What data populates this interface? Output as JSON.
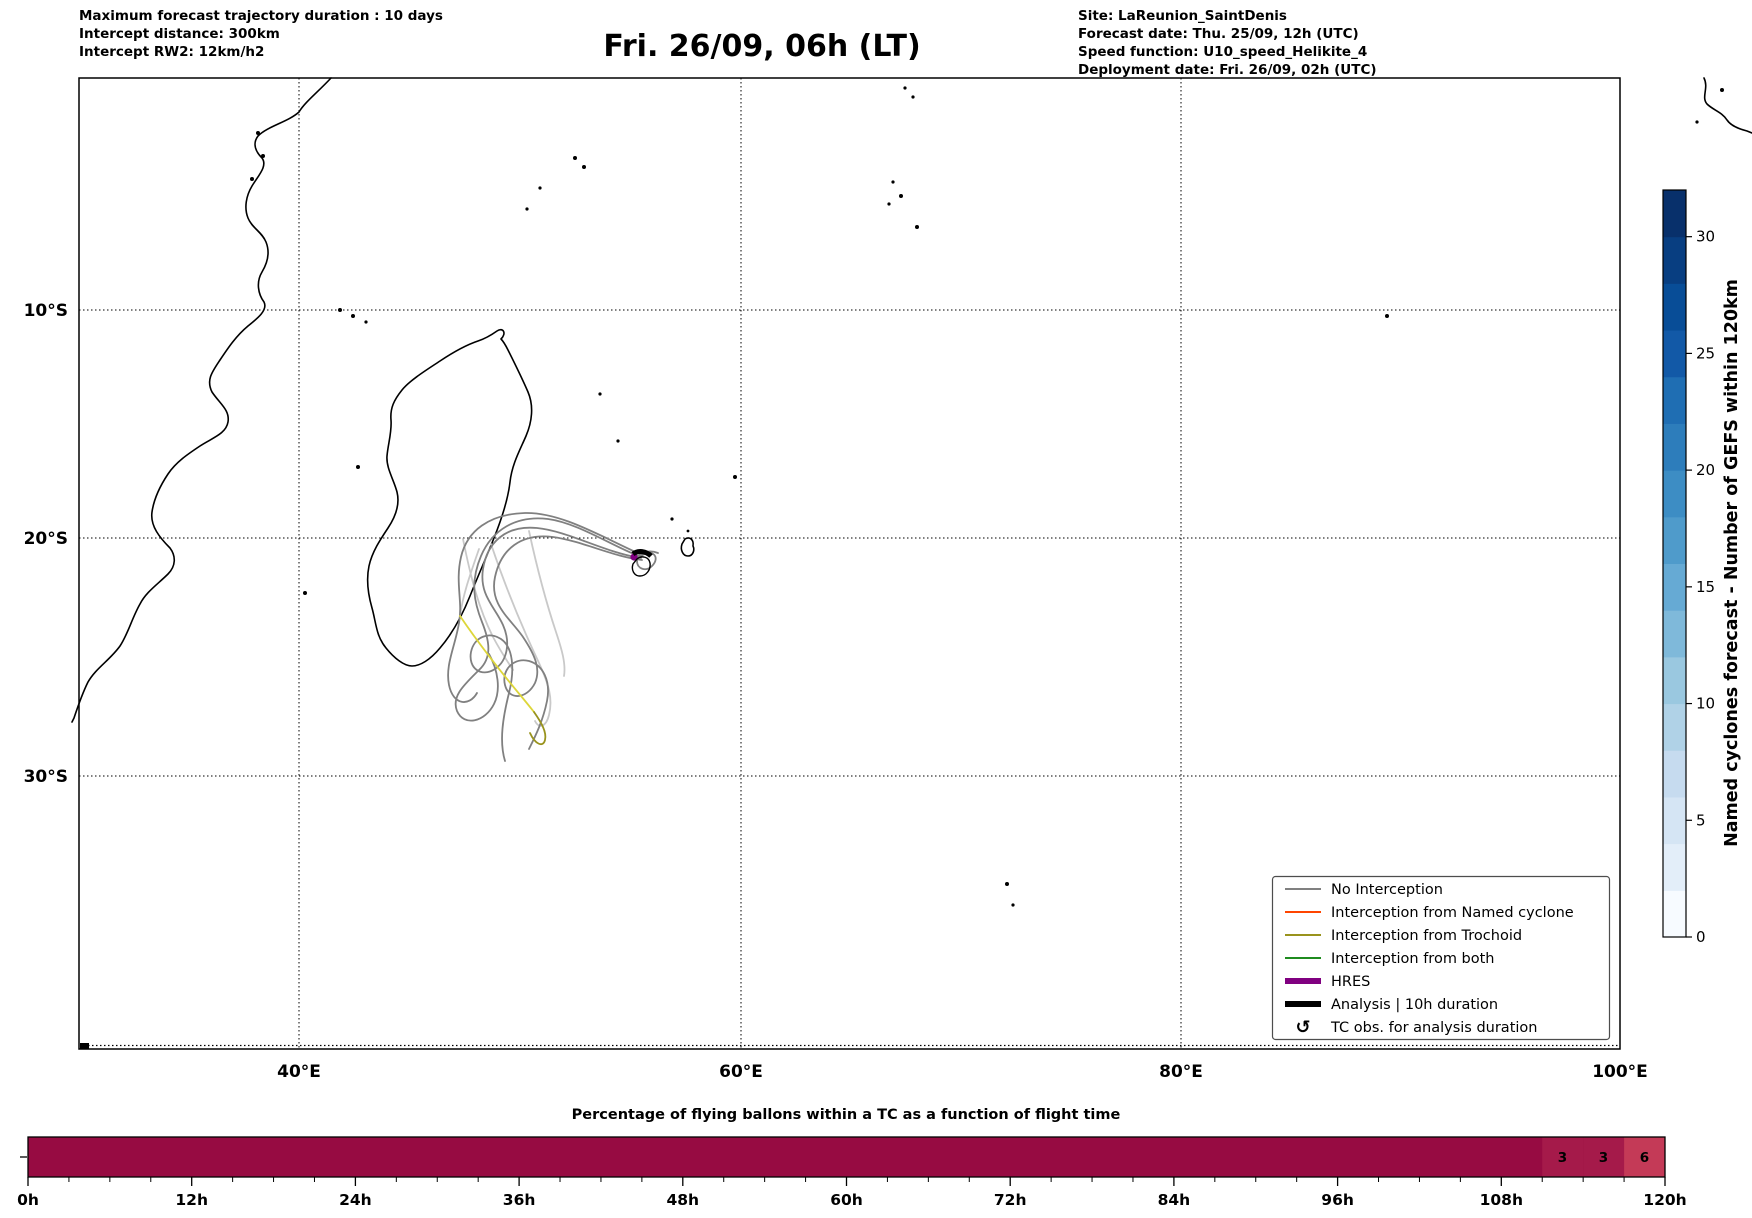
{
  "header": {
    "left_lines": [
      "Maximum forecast trajectory duration : 10 days",
      "Intercept distance: 300km",
      "Intercept RW2: 12km/h2"
    ],
    "title": "Fri. 26/09, 06h (LT)",
    "right_lines": [
      "Site: LaReunion_SaintDenis",
      "Forecast date: Thu. 25/09, 12h (UTC)",
      "Speed function: U10_speed_Helikite_4",
      "Deployment date: Fri. 26/09, 02h (UTC)"
    ]
  },
  "map": {
    "xticks": [
      "40°E",
      "60°E",
      "80°E",
      "100°E"
    ],
    "yticks": [
      "10°S",
      "20°S",
      "30°S"
    ]
  },
  "legend": {
    "items": [
      {
        "label": "No Interception",
        "color": "#808080",
        "thick": false
      },
      {
        "label": "Interception from Named cyclone",
        "color": "#ff4500",
        "thick": false
      },
      {
        "label": "Interception from Trochoid",
        "color": "#99931d",
        "thick": false
      },
      {
        "label": "Interception from both",
        "color": "#1f8b1f",
        "thick": false
      },
      {
        "label": "HRES",
        "color": "#800080",
        "thick": true
      },
      {
        "label": "Analysis | 10h duration",
        "color": "#000000",
        "thick": true
      }
    ],
    "tc_obs": {
      "symbol": "↺",
      "label": "TC obs. for analysis duration"
    }
  },
  "colorbar": {
    "label": "Named cyclones forecast - Number of GEFS within 120km",
    "ticks": [
      {
        "value": 0,
        "label": "0"
      },
      {
        "value": 5,
        "label": "5"
      },
      {
        "value": 10,
        "label": "10"
      },
      {
        "value": 15,
        "label": "15"
      },
      {
        "value": 20,
        "label": "20"
      },
      {
        "value": 25,
        "label": "25"
      },
      {
        "value": 30,
        "label": "30"
      }
    ],
    "vmin": 0,
    "vmax": 32,
    "colors_bottom_to_top": [
      "#f7fbff",
      "#e3eef9",
      "#d5e5f4",
      "#c6dbef",
      "#b0d2e7",
      "#9ac8e0",
      "#7fb9da",
      "#66aad4",
      "#4f9bcb",
      "#3d8dc4",
      "#2d7dbb",
      "#1f6eb3",
      "#1259a7",
      "#084d97",
      "#083e81",
      "#08306b"
    ]
  },
  "strip": {
    "title": "Percentage of flying ballons within a TC as a function of flight time",
    "xticks": [
      "0h",
      "12h",
      "24h",
      "36h",
      "48h",
      "60h",
      "72h",
      "84h",
      "96h",
      "108h",
      "120h"
    ],
    "base_color": "#970b42",
    "cells": [
      {
        "value": "3",
        "start_h": 111,
        "end_h": 114,
        "color": "#a51a4a"
      },
      {
        "value": "3",
        "start_h": 114,
        "end_h": 117,
        "color": "#a51a4a"
      },
      {
        "value": "6",
        "start_h": 117,
        "end_h": 120,
        "color": "#c43a57"
      }
    ]
  },
  "colors": {
    "trajectory_gray": "#808080",
    "trajectory_light": "#c9c9c9",
    "trochoid_yellow": "#ddd63a",
    "trochoid_olive": "#99931d",
    "hres_purple": "#800080",
    "analysis_black": "#000000",
    "coastline": "#000000"
  },
  "chart_data": [
    {
      "type": "line",
      "name": "trajectory-map",
      "title": "Fri. 26/09, 06h (LT)",
      "region": "Southwest Indian Ocean (Africa east coast, Madagascar, La Réunion, Mauritius)",
      "x_axis_ticks": [
        "40°E",
        "60°E",
        "80°E",
        "100°E"
      ],
      "y_axis_ticks": [
        "10°S",
        "20°S",
        "30°S"
      ],
      "grid": "dotted",
      "deployment_point": {
        "lon_e": 55.5,
        "lat_s": 21.0,
        "site": "LaReunion_SaintDenis"
      },
      "series": [
        {
          "name": "No Interception",
          "color": "#808080",
          "description": "several gray looping trajectories from La Réunion arcing WNW over 20°S then south toward SE Madagascar with loops near 47-52°E / 24-28°S"
        },
        {
          "name": "Interception from Trochoid",
          "color": "#99931d",
          "description": "one yellow/olive trajectory segment running SE from Madagascar coast (~48°E,24.5°S) to ~51°E,28°S with olive hairpin tip"
        },
        {
          "name": "HRES",
          "color": "#800080",
          "description": "short purple marker at deployment point"
        },
        {
          "name": "Analysis | 10h duration",
          "color": "#000000",
          "description": "thick black marker at deployment point"
        }
      ],
      "legend_position": "lower right"
    },
    {
      "type": "heatmap",
      "name": "colorbar-scale",
      "label": "Named cyclones forecast - Number of GEFS within 120km",
      "range": [
        0,
        32
      ],
      "ticks": [
        0,
        5,
        10,
        15,
        20,
        25,
        30
      ],
      "colormap": "Blues (discrete, 16 bins)"
    },
    {
      "type": "heatmap",
      "name": "flight-time-strip",
      "title": "Percentage of flying ballons within a TC as a function of flight time",
      "xlabel": "flight time",
      "x_range_hours": [
        0,
        120
      ],
      "bin_hours": 3,
      "x_tick_labels": [
        "0h",
        "12h",
        "24h",
        "36h",
        "48h",
        "60h",
        "72h",
        "84h",
        "96h",
        "108h",
        "120h"
      ],
      "values": [
        0,
        0,
        0,
        0,
        0,
        0,
        0,
        0,
        0,
        0,
        0,
        0,
        0,
        0,
        0,
        0,
        0,
        0,
        0,
        0,
        0,
        0,
        0,
        0,
        0,
        0,
        0,
        0,
        0,
        0,
        0,
        0,
        0,
        0,
        0,
        0,
        0,
        3,
        3,
        6
      ],
      "annotated_cells": [
        {
          "hours": "111-114",
          "value": 3
        },
        {
          "hours": "114-117",
          "value": 3
        },
        {
          "hours": "117-120",
          "value": 6
        }
      ]
    }
  ]
}
